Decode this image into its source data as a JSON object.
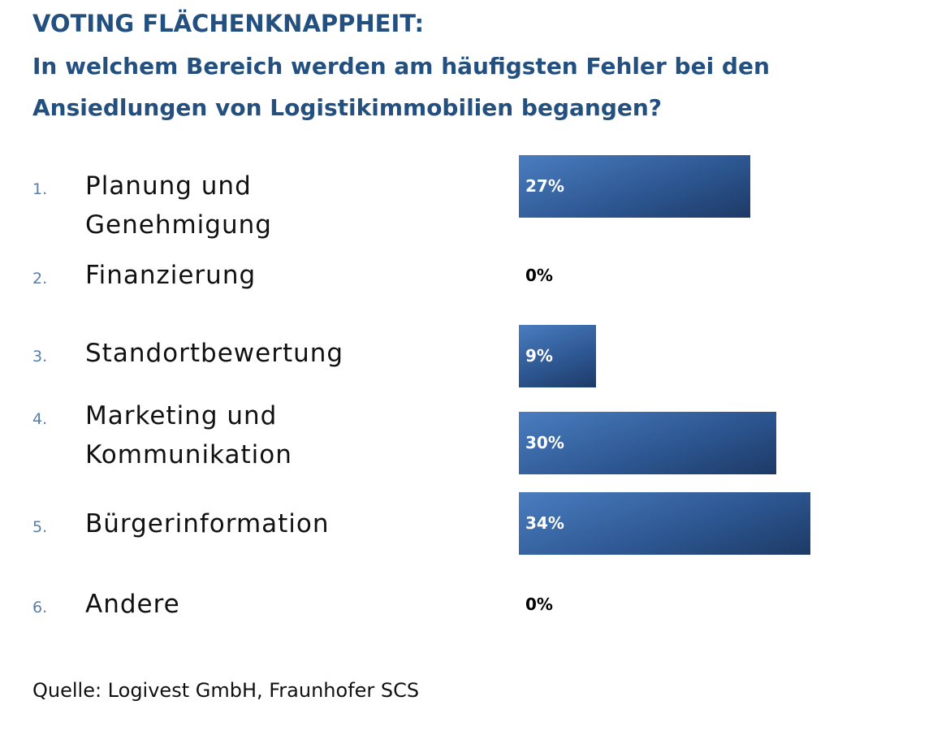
{
  "chart_data": {
    "type": "bar",
    "orientation": "horizontal",
    "title": "VOTING FLÄCHENKNAPPHEIT:",
    "subtitle": "In welchem Bereich werden am häufigsten Fehler bei den Ansiedlungen von Logistikimmobilien begangen?",
    "numbers": [
      "1.",
      "2.",
      "3.",
      "4.",
      "5.",
      "6."
    ],
    "categories": [
      "Planung und Genehmigung",
      "Finanzierung",
      "Standortbewertung",
      "Marketing und Kommunikation",
      "Bürgerinformation",
      "Andere"
    ],
    "values": [
      27,
      0,
      9,
      30,
      34,
      0
    ],
    "value_labels": [
      "27%",
      "0%",
      "9%",
      "30%",
      "34%",
      "0%"
    ],
    "color": "#4a7dc0",
    "source": "Quelle: Logivest GmbH, Fraunhofer SCS"
  }
}
